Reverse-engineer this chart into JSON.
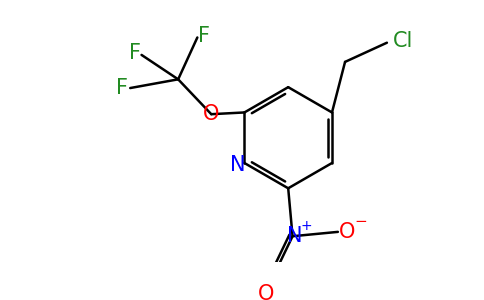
{
  "background_color": "#ffffff",
  "atom_colors": {
    "N_ring": "#0000ff",
    "O": "#ff0000",
    "F": "#228B22",
    "Cl": "#228B22",
    "N_nitro": "#0000ff",
    "O_nitro": "#ff0000"
  },
  "bond_color": "#000000",
  "bond_width": 1.8,
  "font_size_atoms": 15,
  "font_size_super": 10
}
